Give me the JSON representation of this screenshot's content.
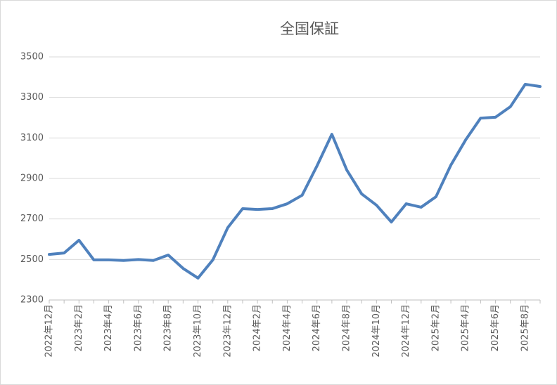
{
  "chart_data": {
    "type": "line",
    "title": "全国保証",
    "categories": [
      "2022年12月",
      null,
      "2023年2月",
      null,
      "2023年4月",
      null,
      "2023年6月",
      null,
      "2023年8月",
      null,
      "2023年10月",
      null,
      "2023年12月",
      null,
      "2024年2月",
      null,
      "2024年4月",
      null,
      "2024年6月",
      null,
      "2024年8月",
      null,
      "2024年10月",
      null,
      "2024年12月",
      null,
      "2025年2月",
      null,
      "2025年4月",
      null,
      "2025年6月",
      null,
      "2025年8月",
      null
    ],
    "values": [
      2525,
      2532,
      2595,
      2498,
      2498,
      2495,
      2500,
      2495,
      2522,
      2456,
      2408,
      2498,
      2657,
      2751,
      2747,
      2751,
      2775,
      2817,
      2962,
      3118,
      2942,
      2824,
      2768,
      2685,
      2775,
      2758,
      2810,
      2966,
      3091,
      3198,
      3202,
      3254,
      3365,
      3354
    ],
    "color": "#4f81bd",
    "ylim": [
      2300,
      3500
    ],
    "yticks": [
      2300,
      2500,
      2700,
      2900,
      3100,
      3300,
      3500
    ],
    "grid": true
  }
}
